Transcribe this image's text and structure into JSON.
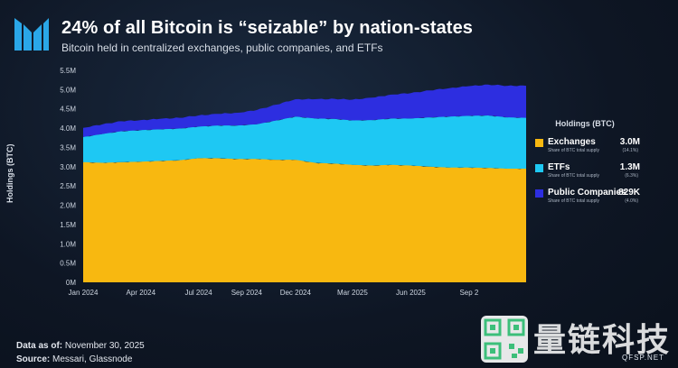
{
  "header": {
    "title": "24% of all Bitcoin is “seizable” by nation-states",
    "subtitle": "Bitcoin held in centralized exchanges, public companies, and ETFs"
  },
  "chart_data": {
    "type": "area",
    "stacked": true,
    "ylabel": "Holdings (BTC)",
    "xlabel": "",
    "ylim": [
      0,
      5.5
    ],
    "y_ticks": [
      "0M",
      "0.5M",
      "1.0M",
      "1.5M",
      "2.0M",
      "2.5M",
      "3.0M",
      "3.5M",
      "4.0M",
      "4.5M",
      "5.0M",
      "5.5M"
    ],
    "x_ticks": [
      "Jan 2024",
      "Apr 2024",
      "Jul 2024",
      "Sep 2024",
      "Dec 2024",
      "Mar 2025",
      "Jun 2025",
      "Sep 2"
    ],
    "x": [
      "2024-01-01",
      "2024-02-01",
      "2024-03-01",
      "2024-04-01",
      "2024-05-01",
      "2024-06-01",
      "2024-07-01",
      "2024-08-01",
      "2024-09-01",
      "2024-10-01",
      "2024-11-01",
      "2024-12-01",
      "2025-01-01",
      "2025-02-01",
      "2025-03-01",
      "2025-04-01",
      "2025-05-01",
      "2025-06-01",
      "2025-07-01",
      "2025-08-01",
      "2025-09-01",
      "2025-10-01",
      "2025-11-01",
      "2025-11-30"
    ],
    "series": [
      {
        "name": "Exchanges",
        "color": "#f8b810",
        "values": [
          3.12,
          3.1,
          3.12,
          3.13,
          3.15,
          3.17,
          3.22,
          3.22,
          3.2,
          3.2,
          3.18,
          3.18,
          3.1,
          3.08,
          3.05,
          3.03,
          3.05,
          3.03,
          3.0,
          2.98,
          2.98,
          2.97,
          2.95,
          2.95
        ]
      },
      {
        "name": "ETFs",
        "color": "#1ec8f3",
        "values": [
          0.65,
          0.75,
          0.8,
          0.82,
          0.82,
          0.82,
          0.82,
          0.85,
          0.87,
          0.9,
          1.02,
          1.12,
          1.15,
          1.16,
          1.15,
          1.18,
          1.2,
          1.22,
          1.28,
          1.32,
          1.34,
          1.36,
          1.33,
          1.32
        ]
      },
      {
        "name": "Public Companies",
        "color": "#2d2ee0",
        "values": [
          0.24,
          0.25,
          0.26,
          0.26,
          0.27,
          0.28,
          0.29,
          0.3,
          0.33,
          0.37,
          0.41,
          0.45,
          0.5,
          0.52,
          0.54,
          0.58,
          0.62,
          0.66,
          0.7,
          0.74,
          0.77,
          0.8,
          0.82,
          0.83
        ]
      }
    ],
    "legend_position": "right",
    "grid": false
  },
  "legend": {
    "title": "Holdings (BTC)",
    "items": [
      {
        "name": "Exchanges",
        "sub": "Share of BTC total supply",
        "value": "3.0M",
        "pct": "(14.1%)",
        "color": "#f8b810"
      },
      {
        "name": "ETFs",
        "sub": "Share of BTC total supply",
        "value": "1.3M",
        "pct": "(6.3%)",
        "color": "#1ec8f3"
      },
      {
        "name": "Public Companies",
        "sub": "Share of BTC total supply",
        "value": "829K",
        "pct": "(4.0%)",
        "color": "#2d2ee0"
      }
    ]
  },
  "footer": {
    "data_as_of_label": "Data as of:",
    "data_as_of_value": "November 30, 2025",
    "source_label": "Source:",
    "source_value": "Messari, Glassnode"
  },
  "watermark": {
    "text": "量链科技",
    "url": "QFSP.NET"
  }
}
